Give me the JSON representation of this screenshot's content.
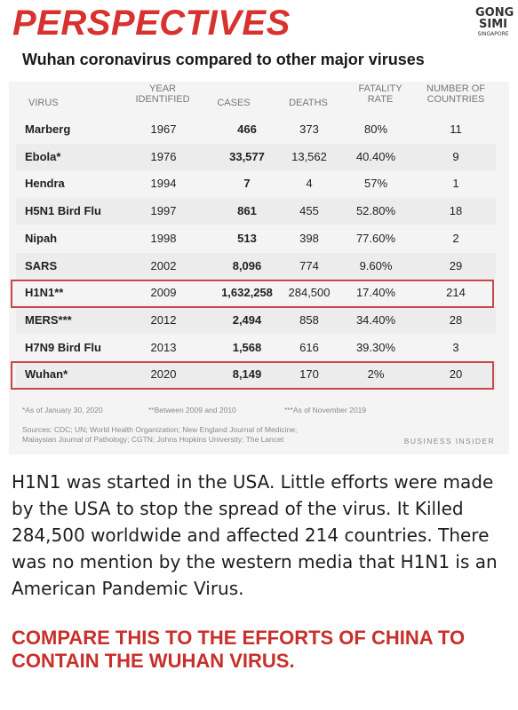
{
  "header": {
    "title": "PERSPECTIVES",
    "subtitle": "Wuhan coronavirus compared to other major viruses",
    "logo": {
      "line1": "GONG",
      "line2": "SIMI",
      "line3": "SINGAPORE"
    }
  },
  "table": {
    "columns": {
      "virus": "VIRUS",
      "year": [
        "YEAR",
        "IDENTIFIED"
      ],
      "cases": "CASES",
      "deaths": "DEATHS",
      "rate": [
        "FATALITY",
        "RATE"
      ],
      "countries": [
        "NUMBER OF",
        "COUNTRIES"
      ]
    },
    "rows": [
      {
        "virus": "Marberg",
        "year": "1967",
        "cases": "466",
        "deaths": "373",
        "rate": "80%",
        "countries": "11"
      },
      {
        "virus": "Ebola*",
        "year": "1976",
        "cases": "33,577",
        "deaths": "13,562",
        "rate": "40.40%",
        "countries": "9"
      },
      {
        "virus": "Hendra",
        "year": "1994",
        "cases": "7",
        "deaths": "4",
        "rate": "57%",
        "countries": "1"
      },
      {
        "virus": "H5N1 Bird Flu",
        "year": "1997",
        "cases": "861",
        "deaths": "455",
        "rate": "52.80%",
        "countries": "18"
      },
      {
        "virus": "Nipah",
        "year": "1998",
        "cases": "513",
        "deaths": "398",
        "rate": "77.60%",
        "countries": "2"
      },
      {
        "virus": "SARS",
        "year": "2002",
        "cases": "8,096",
        "deaths": "774",
        "rate": "9.60%",
        "countries": "29"
      },
      {
        "virus": "H1N1**",
        "year": "2009",
        "cases": "1,632,258",
        "deaths": "284,500",
        "rate": "17.40%",
        "countries": "214"
      },
      {
        "virus": "MERS***",
        "year": "2012",
        "cases": "2,494",
        "deaths": "858",
        "rate": "34.40%",
        "countries": "28"
      },
      {
        "virus": "H7N9 Bird Flu",
        "year": "2013",
        "cases": "1,568",
        "deaths": "616",
        "rate": "39.30%",
        "countries": "3"
      },
      {
        "virus": "Wuhan*",
        "year": "2020",
        "cases": "8,149",
        "deaths": "170",
        "rate": "2%",
        "countries": "20"
      }
    ],
    "highlighted_rows": [
      "H1N1**",
      "Wuhan*"
    ]
  },
  "footnotes": {
    "n1": "*As of January 30, 2020",
    "n2": "**Between 2009 and 2010",
    "n3": "***As of November 2019",
    "sources_line1": "Sources: CDC; UN; World Health Organization; New England Journal of Medicine;",
    "sources_line2": "Malaysian Journal of Pathology; CGTN; Johns Hopkins University; The Lancet",
    "brand": "BUSINESS INSIDER"
  },
  "body": {
    "paragraph": "H1N1 was started in the USA. Little efforts were made by the USA to stop the spread of the virus. It Killed 284,500 worldwide and affected 214 countries. There was no mention by the western media that H1N1 is an American Pandemic Virus.",
    "cta": "COMPARE THIS TO THE EFFORTS OF CHINA TO CONTAIN THE WUHAN VIRUS."
  },
  "colors": {
    "accent_red": "#d7322f",
    "highlight_border": "#c9464a",
    "card_bg": "#f4f4f4"
  }
}
